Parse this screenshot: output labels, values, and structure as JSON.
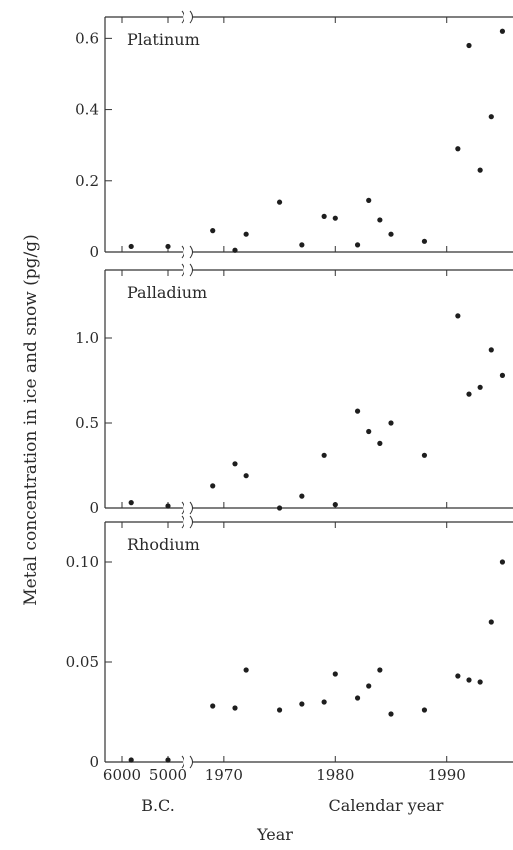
{
  "chart_data": [
    {
      "type": "scatter",
      "title": "Platinum",
      "ylim": [
        0,
        0.66
      ],
      "yticks": [
        0,
        0.2,
        0.4,
        0.6
      ],
      "ytick_labels": [
        "0",
        "0.2",
        "0.4",
        "0.6"
      ],
      "bc_points": [
        [
          -5800,
          0.01
        ],
        [
          -5000,
          0.01
        ]
      ],
      "points": [
        [
          1969,
          0.06
        ],
        [
          1971,
          0.005
        ],
        [
          1972,
          0.05
        ],
        [
          1975,
          0.14
        ],
        [
          1977,
          0.02
        ],
        [
          1979,
          0.1
        ],
        [
          1980,
          0.095
        ],
        [
          1982,
          0.02
        ],
        [
          1983,
          0.145
        ],
        [
          1984,
          0.09
        ],
        [
          1985,
          0.05
        ],
        [
          1988,
          0.03
        ],
        [
          1991,
          0.29
        ],
        [
          1992,
          0.58
        ],
        [
          1993,
          0.23
        ],
        [
          1994,
          0.38
        ],
        [
          1995,
          0.62
        ]
      ]
    },
    {
      "type": "scatter",
      "title": "Palladium",
      "ylim": [
        0,
        1.4
      ],
      "yticks": [
        0,
        0.5,
        1.0
      ],
      "ytick_labels": [
        "0",
        "0.5",
        "1.0"
      ],
      "bc_points": [
        [
          -5800,
          0.02
        ],
        [
          -5000,
          0.0
        ]
      ],
      "points": [
        [
          1969,
          0.13
        ],
        [
          1971,
          0.26
        ],
        [
          1972,
          0.19
        ],
        [
          1975,
          0.0
        ],
        [
          1977,
          0.07
        ],
        [
          1979,
          0.31
        ],
        [
          1980,
          0.02
        ],
        [
          1982,
          0.57
        ],
        [
          1983,
          0.45
        ],
        [
          1984,
          0.38
        ],
        [
          1985,
          0.5
        ],
        [
          1988,
          0.31
        ],
        [
          1991,
          1.13
        ],
        [
          1992,
          0.67
        ],
        [
          1993,
          0.71
        ],
        [
          1994,
          0.93
        ],
        [
          1995,
          0.78
        ]
      ]
    },
    {
      "type": "scatter",
      "title": "Rhodium",
      "ylim": [
        0,
        0.12
      ],
      "yticks": [
        0,
        0.05,
        0.1
      ],
      "ytick_labels": [
        "0",
        "0.05",
        "0.10"
      ],
      "bc_points": [
        [
          -5800,
          0.0
        ],
        [
          -5000,
          0.0
        ]
      ],
      "points": [
        [
          1969,
          0.028
        ],
        [
          1971,
          0.027
        ],
        [
          1972,
          0.046
        ],
        [
          1975,
          0.026
        ],
        [
          1977,
          0.029
        ],
        [
          1979,
          0.03
        ],
        [
          1980,
          0.044
        ],
        [
          1982,
          0.032
        ],
        [
          1983,
          0.038
        ],
        [
          1984,
          0.046
        ],
        [
          1985,
          0.024
        ],
        [
          1988,
          0.026
        ],
        [
          1991,
          0.043
        ],
        [
          1992,
          0.041
        ],
        [
          1993,
          0.04
        ],
        [
          1994,
          0.07
        ],
        [
          1995,
          0.1
        ]
      ]
    }
  ],
  "shared_axes": {
    "ylabel": "Metal concentration in ice and snow (pg/g)",
    "xlabel": "Year",
    "bc_ticks": [
      -6000,
      -5000
    ],
    "bc_tick_labels": [
      "6000",
      "5000"
    ],
    "bc_group_label": "B.C.",
    "calendar_ticks": [
      1970,
      1980,
      1990
    ],
    "calendar_tick_labels": [
      "1970",
      "1980",
      "1990"
    ],
    "calendar_group_label": "Calendar year",
    "calendar_xlim": [
      1967.5,
      1995.5
    ]
  }
}
